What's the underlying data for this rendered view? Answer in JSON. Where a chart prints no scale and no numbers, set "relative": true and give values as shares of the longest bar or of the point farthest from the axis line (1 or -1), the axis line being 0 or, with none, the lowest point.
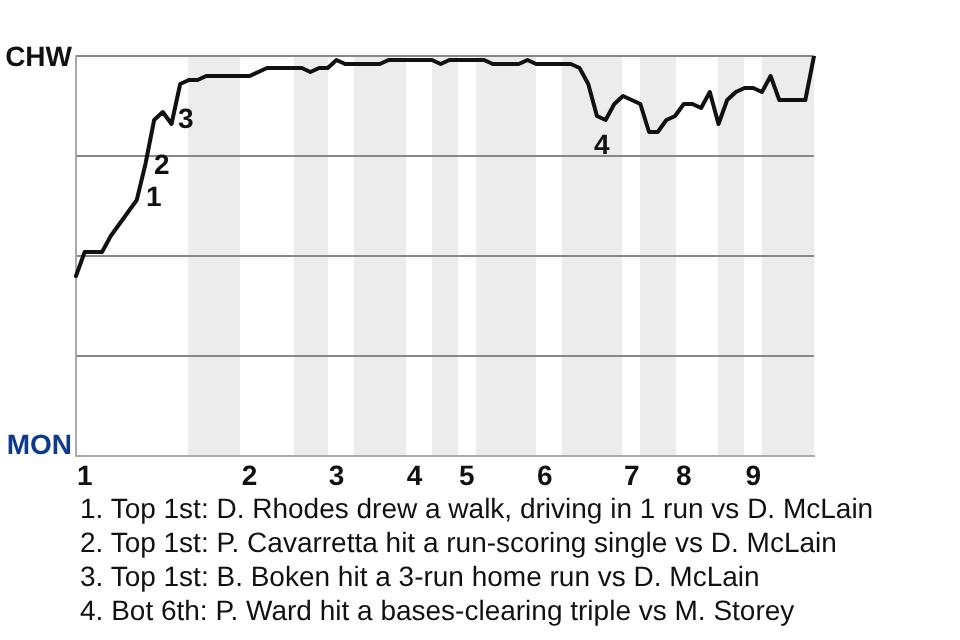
{
  "chart_data": {
    "type": "line",
    "relative": true,
    "categories": [
      null,
      "1",
      null,
      null,
      null,
      null,
      null,
      null,
      null,
      null,
      null,
      null,
      null,
      null,
      null,
      null,
      null,
      null,
      null,
      null,
      "2",
      null,
      null,
      null,
      null,
      null,
      null,
      null,
      null,
      null,
      "3",
      null,
      null,
      null,
      null,
      null,
      null,
      null,
      null,
      "4",
      null,
      null,
      null,
      null,
      null,
      "5",
      null,
      null,
      null,
      null,
      null,
      null,
      null,
      null,
      "6",
      null,
      null,
      null,
      null,
      null,
      null,
      null,
      null,
      null,
      "7",
      null,
      null,
      null,
      null,
      null,
      "8",
      null,
      null,
      null,
      null,
      null,
      null,
      null,
      "9",
      null,
      null,
      null,
      null,
      null,
      null,
      null
    ],
    "grid": "y",
    "legend": false,
    "marker": "none",
    "line_style": "solid",
    "series": [
      {
        "color": "#111111",
        "values": [
          0.45,
          0.51,
          0.51,
          0.51,
          0.55,
          0.58,
          0.61,
          0.64,
          0.73,
          0.84,
          0.86,
          0.83,
          0.93,
          0.94,
          0.94,
          0.95,
          0.95,
          0.95,
          0.95,
          0.95,
          0.95,
          0.96,
          0.97,
          0.97,
          0.97,
          0.97,
          0.97,
          0.96,
          0.97,
          0.97,
          0.99,
          0.98,
          0.98,
          0.98,
          0.98,
          0.98,
          0.99,
          0.99,
          0.99,
          0.99,
          0.99,
          0.99,
          0.98,
          0.99,
          0.99,
          0.99,
          0.99,
          0.99,
          0.98,
          0.98,
          0.98,
          0.98,
          0.99,
          0.98,
          0.98,
          0.98,
          0.98,
          0.98,
          0.97,
          0.93,
          0.85,
          0.84,
          0.88,
          0.9,
          0.89,
          0.88,
          0.81,
          0.81,
          0.84,
          0.85,
          0.88,
          0.88,
          0.87,
          0.91,
          0.83,
          0.89,
          0.91,
          0.92,
          0.92,
          0.91,
          0.95,
          0.89,
          0.89,
          0.89,
          0.89,
          1
        ]
      }
    ],
    "annotations": [
      "CHW",
      "MON",
      "1",
      "2",
      "3",
      "4",
      "1. Top 1st: D. Rhodes drew a walk, driving in 1 run vs D. McLain",
      "2. Top 1st: P. Cavarretta hit a run-scoring single vs D. McLain",
      "3. Top 1st: B. Boken hit a 3-run home run vs D. McLain",
      "4. Bot 6th: P. Ward hit a bases-clearing triple vs M. Storey"
    ]
  }
}
